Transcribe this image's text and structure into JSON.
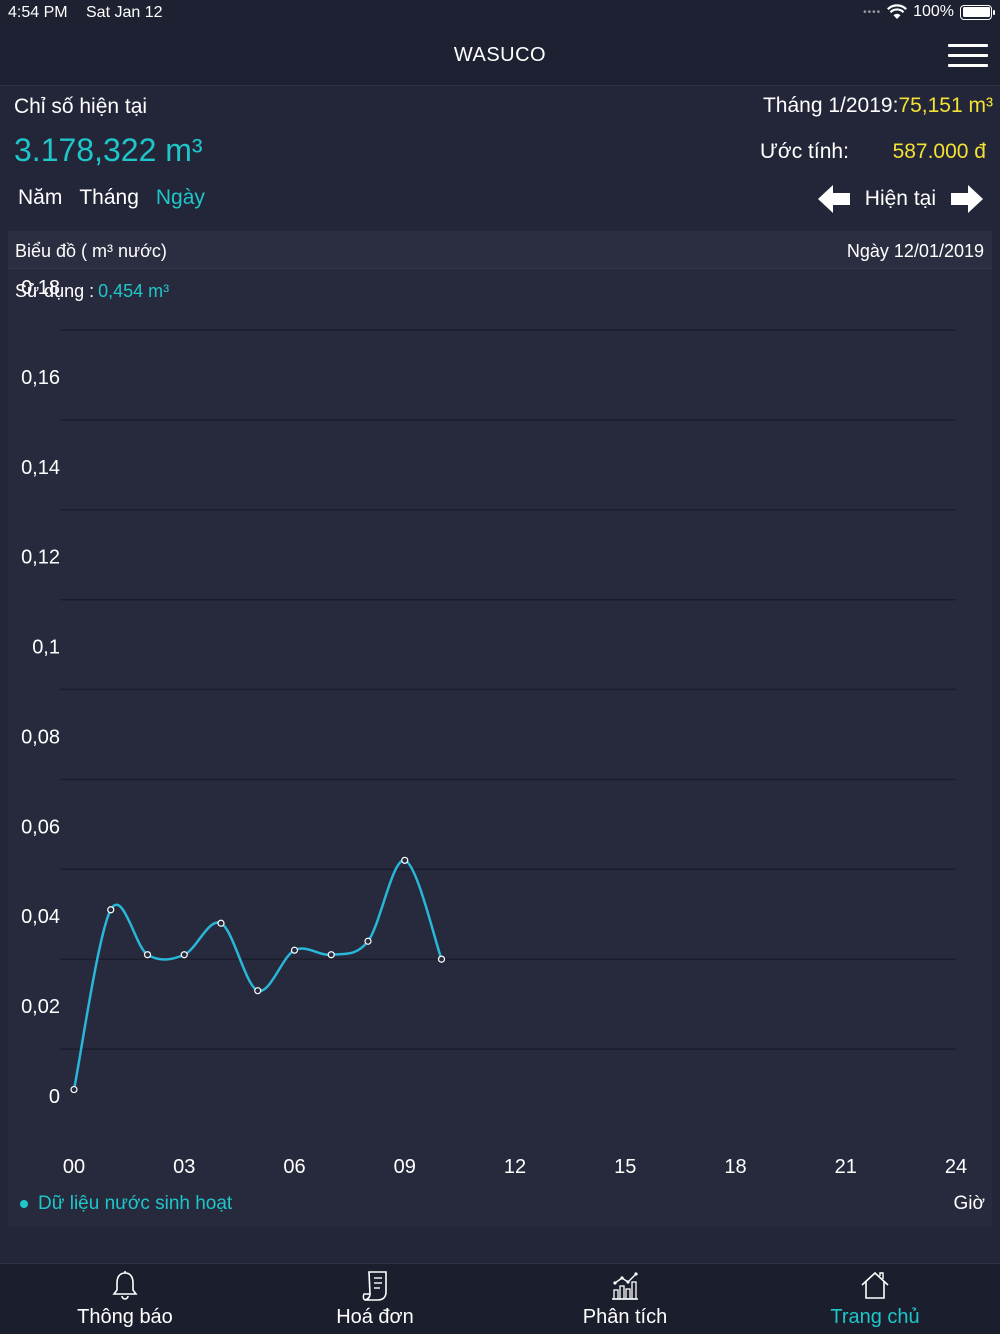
{
  "status_bar": {
    "time": "4:54 PM",
    "date": "Sat Jan 12",
    "signal_dots": "••••",
    "battery": "100%"
  },
  "nav": {
    "title": "WASUCO",
    "menu_icon": "hamburger-menu-icon"
  },
  "summary": {
    "current_label": "Chỉ số hiện tại",
    "current_value": "3.178,322 m³",
    "month_label": "Tháng 1/2019:",
    "month_value": "75,151 m³",
    "estimate_label": "Ước tính:",
    "estimate_value": "587.000 đ"
  },
  "period_tabs": [
    {
      "label": "Năm",
      "active": false
    },
    {
      "label": "Tháng",
      "active": false
    },
    {
      "label": "Ngày",
      "active": true
    }
  ],
  "period_nav": {
    "label": "Hiện tại",
    "prev_icon": "arrow-left-icon",
    "next_icon": "arrow-right-icon"
  },
  "chart_panel": {
    "title": "Biểu đồ ( m³ nước)",
    "date": "Ngày 12/01/2019",
    "usage_label": "Sử dụng :",
    "usage_value": "0,454 m³",
    "legend": "Dữ liệu nước sinh hoạt",
    "x_unit": "Giờ"
  },
  "colors": {
    "accent": "#1fc6c9",
    "highlight": "#f2e233",
    "background": "#232638",
    "line": "#29b6d8"
  },
  "chart_data": {
    "type": "line",
    "x": [
      0,
      1,
      2,
      3,
      4,
      5,
      6,
      7,
      8,
      9,
      10
    ],
    "series": [
      {
        "values": [
          0.011,
          0.051,
          0.041,
          0.041,
          0.048,
          0.033,
          0.042,
          0.041,
          0.044,
          0.062,
          0.04
        ]
      }
    ],
    "xlim": [
      0,
      24
    ],
    "ylim": [
      0,
      0.18
    ],
    "x_ticks": [
      "00",
      "03",
      "06",
      "09",
      "12",
      "15",
      "18",
      "21",
      "24"
    ],
    "y_ticks": [
      "0",
      "0,02",
      "0,04",
      "0,06",
      "0,08",
      "0,1",
      "0,12",
      "0,14",
      "0,16",
      "0,18"
    ],
    "xlabel": "Giờ",
    "ylabel": "",
    "grid": true
  },
  "tab_bar": [
    {
      "label": "Thông báo",
      "icon": "bell-icon",
      "active": false
    },
    {
      "label": "Hoá đơn",
      "icon": "receipt-icon",
      "active": false
    },
    {
      "label": "Phân tích",
      "icon": "analytics-chart-icon",
      "active": false
    },
    {
      "label": "Trang chủ",
      "icon": "home-icon",
      "active": true
    }
  ]
}
